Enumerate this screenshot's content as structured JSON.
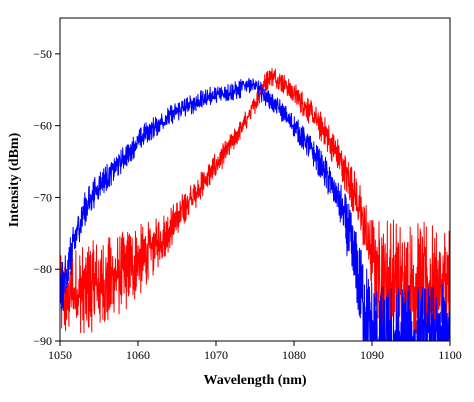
{
  "chart_data": {
    "type": "line",
    "title": "",
    "xlabel": "Wavelength (nm)",
    "ylabel": "Intensity (dBm)",
    "xlim": [
      1050,
      1100
    ],
    "ylim": [
      -90,
      -45
    ],
    "x_ticks": [
      1050,
      1060,
      1070,
      1080,
      1090,
      1100
    ],
    "y_ticks": [
      -90,
      -80,
      -70,
      -60,
      -50
    ],
    "x_tick_labels": [
      "1050",
      "1060",
      "1070",
      "1080",
      "1090",
      "1100"
    ],
    "y_tick_labels": [
      "−90",
      "−80",
      "−70",
      "−60",
      "−50"
    ],
    "grid": false,
    "legend": "none",
    "series": [
      {
        "color": "#ff0000",
        "noise": [
          [
            1050,
            4.5
          ],
          [
            1055,
            5.0
          ],
          [
            1060,
            4.0
          ],
          [
            1063,
            2.5
          ],
          [
            1068,
            1.5
          ],
          [
            1075,
            1.0
          ],
          [
            1080,
            1.2
          ],
          [
            1085,
            1.8
          ],
          [
            1088,
            2.5
          ],
          [
            1090,
            4.5
          ],
          [
            1092,
            7.0
          ],
          [
            1095,
            7.0
          ],
          [
            1100,
            7.0
          ]
        ],
        "points": [
          [
            1050,
            -84
          ],
          [
            1052,
            -83
          ],
          [
            1054,
            -82.5
          ],
          [
            1056,
            -81.8
          ],
          [
            1058,
            -80.5
          ],
          [
            1060,
            -79
          ],
          [
            1062,
            -77
          ],
          [
            1064,
            -74.5
          ],
          [
            1066,
            -71.5
          ],
          [
            1068,
            -68.5
          ],
          [
            1070,
            -65.5
          ],
          [
            1072,
            -62.5
          ],
          [
            1074,
            -59
          ],
          [
            1075,
            -57
          ],
          [
            1076,
            -54.5
          ],
          [
            1077,
            -53
          ],
          [
            1078,
            -53.5
          ],
          [
            1080,
            -55.5
          ],
          [
            1082,
            -58
          ],
          [
            1084,
            -61
          ],
          [
            1086,
            -65
          ],
          [
            1088,
            -70
          ],
          [
            1089,
            -74
          ],
          [
            1090,
            -78
          ],
          [
            1091,
            -80.5
          ],
          [
            1093,
            -82
          ],
          [
            1095,
            -82.5
          ],
          [
            1097,
            -82.5
          ],
          [
            1100,
            -82.5
          ]
        ]
      },
      {
        "color": "#0000ff",
        "noise": [
          [
            1050,
            3.0
          ],
          [
            1052,
            2.0
          ],
          [
            1055,
            1.5
          ],
          [
            1060,
            1.2
          ],
          [
            1070,
            1.0
          ],
          [
            1075,
            1.0
          ],
          [
            1080,
            1.2
          ],
          [
            1083,
            1.5
          ],
          [
            1086,
            2.5
          ],
          [
            1088,
            4.0
          ],
          [
            1090,
            6.0
          ]
        ],
        "points": [
          [
            1050,
            -84
          ],
          [
            1051,
            -80
          ],
          [
            1052,
            -75.5
          ],
          [
            1053,
            -72
          ],
          [
            1054,
            -70
          ],
          [
            1055,
            -68.3
          ],
          [
            1057,
            -66
          ],
          [
            1059,
            -63.5
          ],
          [
            1061,
            -61
          ],
          [
            1063,
            -59.5
          ],
          [
            1065,
            -58
          ],
          [
            1067,
            -57
          ],
          [
            1069,
            -56
          ],
          [
            1071,
            -55.5
          ],
          [
            1073,
            -55
          ],
          [
            1074,
            -54
          ],
          [
            1075,
            -54.5
          ],
          [
            1076,
            -55.5
          ],
          [
            1078,
            -57.5
          ],
          [
            1080,
            -60
          ],
          [
            1082,
            -63
          ],
          [
            1084,
            -66.5
          ],
          [
            1086,
            -71
          ],
          [
            1087,
            -75
          ],
          [
            1088,
            -80
          ],
          [
            1089,
            -85
          ],
          [
            1090,
            -89
          ],
          [
            1091,
            -90
          ]
        ]
      }
    ]
  }
}
